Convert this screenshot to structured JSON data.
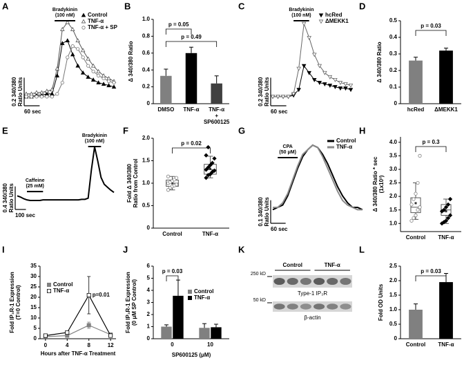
{
  "chart_data": [
    {
      "label": "A",
      "type": "trace",
      "xlim": [
        0,
        340
      ],
      "ylim": [
        -0.05,
        0.6
      ],
      "x": [
        0,
        20,
        40,
        60,
        80,
        100,
        120,
        140,
        160,
        180,
        200,
        220,
        240,
        260,
        280,
        300,
        320,
        340
      ],
      "series": [
        {
          "name": "Control",
          "color": "#000000",
          "marker": "triangle-filled",
          "values": [
            0,
            0,
            0.01,
            0.01,
            0.02,
            0.02,
            0.15,
            0.38,
            0.4,
            0.3,
            0.22,
            0.17,
            0.14,
            0.12,
            0.1,
            0.09,
            0.08,
            0.07
          ]
        },
        {
          "name": "TNF-α",
          "color": "#555555",
          "marker": "triangle-open",
          "values": [
            0.02,
            0.02,
            0.03,
            0.03,
            0.04,
            0.05,
            0.2,
            0.48,
            0.53,
            0.48,
            0.4,
            0.33,
            0.27,
            0.22,
            0.18,
            0.15,
            0.13,
            0.11
          ]
        },
        {
          "name": "TNF-α + SP",
          "color": "#777777",
          "marker": "circle-open",
          "values": [
            0,
            0,
            0,
            0,
            0,
            0,
            0.02,
            0.1,
            0.28,
            0.36,
            0.34,
            0.28,
            0.22,
            0.18,
            0.15,
            0.13,
            0.11,
            0.1
          ]
        }
      ],
      "stimuli": [
        {
          "label": [
            "Bradykinin",
            "(100 nM)"
          ],
          "x": [
            110,
            190
          ]
        }
      ],
      "scale_x": {
        "value": 60,
        "label": "60 sec"
      },
      "scale_y": {
        "value": 0.2,
        "label": [
          "0.2 340/380",
          "Ratio Units"
        ]
      }
    },
    {
      "label": "B",
      "type": "bar",
      "ylabel": "Δ 340/380 Ratio",
      "ylim": [
        0,
        1
      ],
      "yticks": [
        0,
        0.2,
        0.4,
        0.6,
        0.8,
        {
          "value": 1,
          "label": "1.0"
        }
      ],
      "categories": [
        [
          "DMSO"
        ],
        [
          "TNF-α"
        ],
        [
          "TNF-α",
          "+",
          "SP600125"
        ]
      ],
      "values": [
        0.33,
        0.6,
        0.24
      ],
      "errors": [
        0.08,
        0.07,
        0.09
      ],
      "colors": [
        "#808080",
        "#000000",
        "#404040"
      ],
      "brackets": [
        {
          "from": 0,
          "to": 1,
          "label": "p = 0.05"
        },
        {
          "from": 0,
          "to": 2,
          "label": "p = 0.49"
        }
      ]
    },
    {
      "label": "C",
      "type": "trace",
      "xlim": [
        0,
        300
      ],
      "ylim": [
        -0.05,
        0.6
      ],
      "x": [
        0,
        20,
        40,
        60,
        80,
        100,
        120,
        140,
        160,
        180,
        200,
        220,
        240,
        260,
        280,
        300
      ],
      "series": [
        {
          "name": "hcRed",
          "color": "#000000",
          "marker": "triangle-down-filled",
          "values": [
            0,
            0,
            0,
            0,
            0.01,
            0.05,
            0.22,
            0.17,
            0.12,
            0.1,
            0.09,
            0.08,
            0.07,
            0.06,
            0.06,
            0.05
          ]
        },
        {
          "name": "ΔMEKK1",
          "color": "#666666",
          "marker": "triangle-down-open",
          "values": [
            0,
            0,
            0,
            0,
            0.02,
            0.2,
            0.52,
            0.42,
            0.3,
            0.22,
            0.17,
            0.14,
            0.12,
            0.1,
            0.09,
            0.08
          ]
        }
      ],
      "stimuli": [
        {
          "label": [
            "Bradykinin",
            "(100 nM)"
          ],
          "x": [
            80,
            140
          ]
        }
      ],
      "scale_x": {
        "value": 60,
        "label": "60 sec"
      },
      "scale_y": {
        "value": 0.2,
        "label": [
          "0.2 340/380",
          "Ratio Units"
        ]
      }
    },
    {
      "label": "D",
      "type": "bar",
      "ylabel": "Δ 340/380 Ratio",
      "ylim": [
        0,
        0.5
      ],
      "yticks": [
        0,
        0.1,
        0.2,
        0.3,
        0.4,
        0.5
      ],
      "categories": [
        [
          "hcRed"
        ],
        [
          "ΔMEKK1"
        ]
      ],
      "values": [
        0.26,
        0.32
      ],
      "errors": [
        0.02,
        0.015
      ],
      "colors": [
        "#808080",
        "#000000"
      ],
      "brackets": [
        {
          "from": 0,
          "to": 1,
          "label": "p = 0.03"
        }
      ]
    },
    {
      "label": "E",
      "type": "trace",
      "xlim": [
        0,
        900
      ],
      "ylim": [
        -0.1,
        1.1
      ],
      "x": [
        0,
        30,
        60,
        90,
        120,
        150,
        180,
        210,
        240,
        270,
        300,
        330,
        360,
        390,
        420,
        450,
        480,
        510,
        540,
        570,
        600,
        630,
        660,
        690,
        720,
        750,
        780,
        810,
        840,
        870,
        900
      ],
      "series": [
        {
          "color": "#000000",
          "values": [
            0.1,
            0.08,
            0.05,
            0.03,
            0.02,
            0.02,
            0.02,
            0.02,
            0.03,
            0.03,
            0.03,
            0.03,
            0.03,
            0.03,
            0.03,
            0.03,
            0.03,
            0.03,
            0.03,
            0.03,
            0.04,
            0.04,
            0.06,
            0.55,
            0.95,
            0.7,
            0.42,
            0.3,
            0.25,
            0.2,
            0.16
          ]
        }
      ],
      "stimuli": [
        {
          "label": [
            "Caffeine",
            "(25 mM)"
          ],
          "x": [
            90,
            240
          ]
        },
        {
          "label": [
            "Bradykinin",
            "(100 nM)"
          ],
          "x": [
            660,
            780
          ]
        }
      ],
      "scale_x": {
        "value": 100,
        "label": "100 sec"
      },
      "scale_y": {
        "value": 0.4,
        "label": [
          "0.4 340/380",
          "Ratio Units"
        ]
      }
    },
    {
      "label": "F",
      "type": "box",
      "ylabel": [
        "Fold Δ 340/380",
        "Ratio from Control"
      ],
      "ylim": [
        0,
        2
      ],
      "yticks": [
        0,
        0.5,
        {
          "value": 1,
          "label": "1.0"
        },
        1.5,
        {
          "value": 2,
          "label": "2.0"
        }
      ],
      "categories": [
        "Control",
        "TNF-α"
      ],
      "boxes": [
        {
          "whislo": 0.85,
          "q1": 0.93,
          "med": 1.0,
          "q3": 1.07,
          "whishi": 1.15,
          "mean": 1.0
        },
        {
          "whislo": 1.12,
          "q1": 1.2,
          "med": 1.3,
          "q3": 1.42,
          "whishi": 1.6,
          "mean": 1.32
        }
      ],
      "points": [
        [
          0.85,
          0.9,
          0.93,
          0.95,
          0.97,
          1.0,
          1.02,
          1.05,
          1.08,
          1.12,
          1.15
        ],
        [
          1.12,
          1.18,
          1.2,
          1.25,
          1.28,
          1.3,
          1.35,
          1.4,
          1.45,
          1.55,
          1.62,
          1.8
        ]
      ],
      "colors": [
        "#808080",
        "#000000"
      ],
      "markers": [
        "circle-open",
        "diamond-filled"
      ],
      "brackets": [
        {
          "from": 0,
          "to": 1,
          "label": "p = 0.02"
        }
      ]
    },
    {
      "label": "G",
      "type": "trace",
      "xlim": [
        0,
        360
      ],
      "ylim": [
        -0.03,
        0.33
      ],
      "x": [
        0,
        20,
        40,
        60,
        80,
        100,
        120,
        140,
        160,
        180,
        200,
        220,
        240,
        260,
        280,
        300,
        320,
        340,
        360
      ],
      "series": [
        {
          "name": "Control",
          "color": "#000000",
          "values": [
            0.02,
            0.03,
            0.04,
            0.08,
            0.14,
            0.2,
            0.25,
            0.28,
            0.3,
            0.29,
            0.26,
            0.22,
            0.17,
            0.12,
            0.08,
            0.05,
            0.03,
            0.03,
            0.02
          ]
        },
        {
          "name": "TNF-α",
          "color": "#8a8a8a",
          "values": [
            0.03,
            0.03,
            0.05,
            0.09,
            0.15,
            0.21,
            0.26,
            0.28,
            0.3,
            0.29,
            0.25,
            0.2,
            0.15,
            0.1,
            0.06,
            0.04,
            0.03,
            0.02,
            0.02
          ]
        }
      ],
      "stimuli": [
        {
          "label": [
            "CPA",
            "(50 μM)"
          ],
          "x": [
            20,
            100
          ]
        }
      ],
      "scale_x": {
        "value": 60,
        "label": "60 sec"
      },
      "scale_y": {
        "value": 0.1,
        "label": [
          "0.1 340/380",
          "Ratio Units"
        ]
      }
    },
    {
      "label": "H",
      "type": "box",
      "ylabel": [
        "Δ 340/380 Ratio * sec",
        "(1x10³)"
      ],
      "ylim": [
        0.7,
        4.2
      ],
      "yticks": [
        {
          "value": 1,
          "label": "1.0"
        },
        1.5,
        {
          "value": 2,
          "label": "2.0"
        },
        2.5,
        {
          "value": 3,
          "label": "3.0"
        },
        3.5,
        {
          "value": 4,
          "label": "4.0"
        }
      ],
      "categories": [
        "Control",
        "TNF-α"
      ],
      "boxes": [
        {
          "whislo": 1.15,
          "q1": 1.4,
          "med": 1.6,
          "q3": 1.95,
          "whishi": 2.5,
          "mean": 1.75
        },
        {
          "whislo": 1.0,
          "q1": 1.3,
          "med": 1.5,
          "q3": 1.7,
          "whishi": 1.9,
          "mean": 1.45
        }
      ],
      "points": [
        [
          1.1,
          1.2,
          1.3,
          1.5,
          1.6,
          1.7,
          1.9,
          2.1,
          2.5,
          3.5
        ],
        [
          1.0,
          1.05,
          1.1,
          1.2,
          1.3,
          1.45,
          1.5,
          1.6,
          1.7,
          1.9
        ]
      ],
      "colors": [
        "#808080",
        "#000000"
      ],
      "markers": [
        "circle-open",
        "diamond-filled"
      ],
      "brackets": [
        {
          "from": 0,
          "to": 1,
          "label": "p = 0.3"
        }
      ]
    },
    {
      "label": "I",
      "type": "line",
      "x": [
        0,
        4,
        8,
        12
      ],
      "xlim": [
        -1,
        13
      ],
      "xticks": [
        0,
        4,
        8,
        12
      ],
      "ylim": [
        0,
        35
      ],
      "yticks": [
        0,
        5,
        10,
        15,
        20,
        25,
        30,
        35
      ],
      "xlabel": "Hours after TNF-α Treatment",
      "ylabel": [
        "Fold IP₃R-1 Expression",
        "(T=0 Control)"
      ],
      "series": [
        {
          "name": "Control",
          "color": "#808080",
          "marker": "square-filled",
          "values": [
            1,
            1.5,
            6.5,
            2
          ],
          "errors": [
            0.5,
            0.5,
            1.5,
            0.5
          ]
        },
        {
          "name": "TNF-α",
          "color": "#000000",
          "marker": "square-open",
          "values": [
            1.5,
            3,
            21,
            1.5
          ],
          "errors": [
            0.5,
            0.8,
            9,
            0.5
          ]
        }
      ],
      "annotations": [
        "p=0.01"
      ]
    },
    {
      "label": "J",
      "type": "bar",
      "ylabel": [
        "Fold IP₃R-1 Expression",
        "(0 μM SP Control)"
      ],
      "xlabel": "SP600125 (μM)",
      "ylim": [
        0,
        6
      ],
      "yticks": [
        0,
        1,
        2,
        3,
        4,
        5,
        6
      ],
      "categories": [
        [
          "0"
        ],
        [
          "10"
        ]
      ],
      "series": [
        {
          "name": "Control",
          "color": "#808080",
          "values": [
            1.0,
            0.9
          ],
          "errors": [
            0.15,
            0.35
          ]
        },
        {
          "name": "TNF-α",
          "color": "#000000",
          "values": [
            3.55,
            0.95
          ],
          "errors": [
            1.3,
            0.25
          ]
        }
      ],
      "brackets": [
        {
          "from": 0,
          "to": 1,
          "label": "p = 0.03"
        }
      ]
    },
    {
      "label": "K",
      "type": "blot",
      "groups": [
        "Control",
        "TNF-α"
      ],
      "markers": [
        {
          "size": "250 kD",
          "band": "Type-1 IP₃R"
        },
        {
          "size": "50 kD",
          "band": "β-actin"
        }
      ]
    },
    {
      "label": "L",
      "type": "bar",
      "ylabel": "Fold OD Units",
      "ylim": [
        0,
        2.5
      ],
      "yticks": [
        0,
        0.5,
        {
          "value": 1,
          "label": "1.0"
        },
        1.5,
        {
          "value": 2,
          "label": "2.0"
        },
        2.5
      ],
      "categories": [
        [
          "Control"
        ],
        [
          "TNF-α"
        ]
      ],
      "values": [
        1.0,
        1.95
      ],
      "errors": [
        0.2,
        0.3
      ],
      "colors": [
        "#808080",
        "#000000"
      ],
      "brackets": [
        {
          "from": 0,
          "to": 1,
          "label": "p = 0.03"
        }
      ]
    }
  ]
}
